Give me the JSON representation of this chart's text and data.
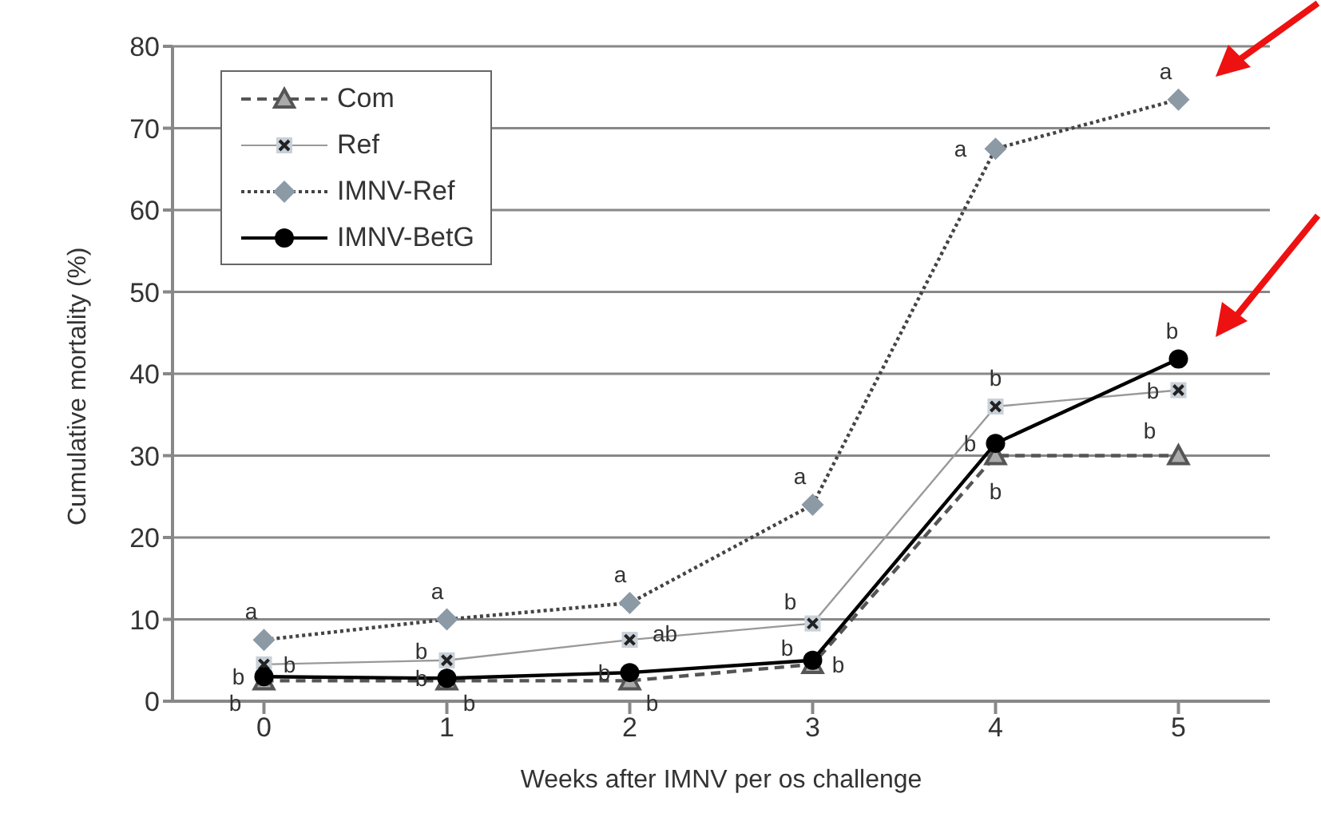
{
  "chart_data": {
    "type": "line",
    "xlabel": "Weeks after IMNV per os challenge",
    "ylabel": "Cumulative mortality (%)",
    "x": [
      0,
      1,
      2,
      3,
      4,
      5
    ],
    "xlim": [
      -0.5,
      5.5
    ],
    "xticks": [
      0,
      1,
      2,
      3,
      4,
      5
    ],
    "ylim": [
      0,
      80
    ],
    "yticks": [
      0,
      10,
      20,
      30,
      40,
      50,
      60,
      70,
      80
    ],
    "grid": "y",
    "legend": "top left",
    "series": [
      {
        "name": "Com",
        "color": "#555555",
        "marker": "triangle",
        "line_style": "dashed",
        "values": [
          2.5,
          2.5,
          2.5,
          4.5,
          30,
          30
        ],
        "value_labels": [
          "b",
          "b",
          "b",
          "b",
          "b",
          "b"
        ]
      },
      {
        "name": "Ref",
        "color": "#999999",
        "marker": "square",
        "line_style": "solid",
        "values": [
          4.5,
          5,
          7.5,
          9.5,
          36,
          38
        ],
        "value_labels": [
          "b",
          "b",
          "ab",
          "b",
          "b",
          "b"
        ]
      },
      {
        "name": "IMNV-Ref",
        "color": "#444444",
        "marker": "diamond",
        "line_style": "dotted",
        "values": [
          7.5,
          10,
          12,
          24,
          67.5,
          73.5
        ],
        "value_labels": [
          "a",
          "a",
          "a",
          "a",
          "a",
          "a"
        ]
      },
      {
        "name": "IMNV-BetG",
        "color": "#000000",
        "marker": "circle",
        "line_style": "solid",
        "values": [
          3,
          2.8,
          3.5,
          5,
          31.5,
          41.8
        ],
        "value_labels": [
          "b",
          "b",
          "b",
          "b",
          "b",
          "b"
        ]
      }
    ]
  }
}
